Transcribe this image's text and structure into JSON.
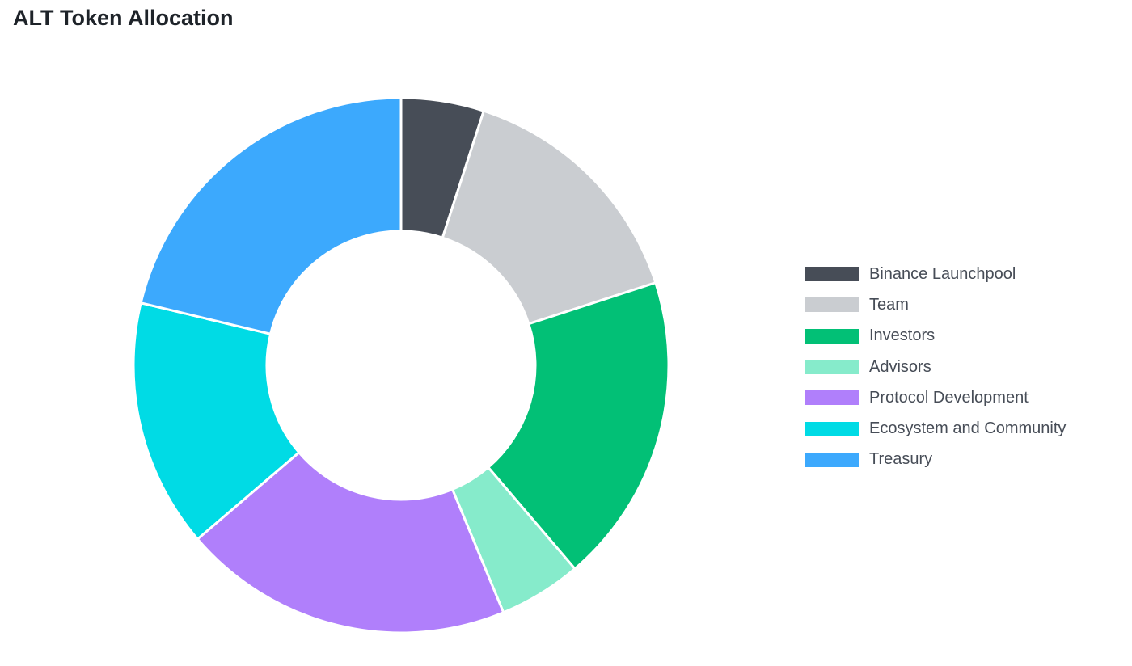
{
  "title": "ALT Token Allocation",
  "chart_data": {
    "type": "pie",
    "title": "ALT Token Allocation",
    "legend_position": "right",
    "categories": [
      "Binance Launchpool",
      "Team",
      "Investors",
      "Advisors",
      "Protocol Development",
      "Ecosystem and Community",
      "Treasury"
    ],
    "values": [
      5,
      15,
      18.75,
      5,
      20,
      15,
      21.25
    ],
    "colors": [
      "#474d57",
      "#cacdd1",
      "#02c076",
      "#86ebcb",
      "#b07ffb",
      "#00dbe5",
      "#3ca9fd"
    ]
  }
}
